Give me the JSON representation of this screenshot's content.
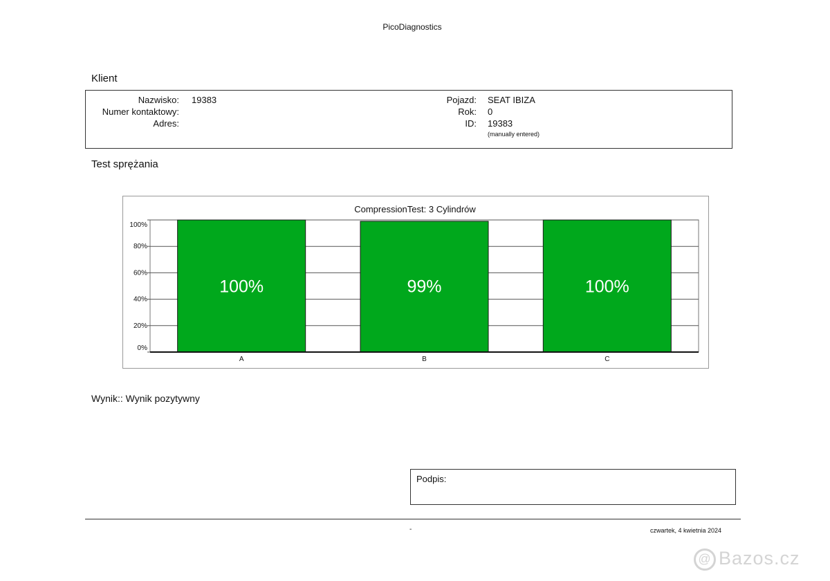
{
  "app_title": "PicoDiagnostics",
  "client": {
    "section_title": "Klient",
    "left_fields": [
      {
        "label": "Nazwisko:",
        "value": "19383"
      },
      {
        "label": "Numer kontaktowy:",
        "value": ""
      },
      {
        "label": "Adres:",
        "value": ""
      }
    ],
    "right_fields": [
      {
        "label": "Pojazd:",
        "value": "SEAT IBIZA"
      },
      {
        "label": "Rok:",
        "value": "0"
      },
      {
        "label": "ID:",
        "value": "19383"
      }
    ],
    "id_note": "(manually entered)"
  },
  "test": {
    "section_title": "Test sprężania"
  },
  "chart_data": {
    "type": "bar",
    "title": "CompressionTest: 3 Cylindrów",
    "categories": [
      "A",
      "B",
      "C"
    ],
    "values": [
      100,
      99,
      100
    ],
    "value_labels": [
      "100%",
      "99%",
      "100%"
    ],
    "y_ticks": [
      "0%",
      "20%",
      "40%",
      "60%",
      "80%",
      "100%"
    ],
    "ylim": [
      0,
      100
    ],
    "grid": true,
    "bar_color": "#00a81c",
    "label_color": "#ffffff"
  },
  "result": {
    "text": "Wynik:: Wynik pozytywny"
  },
  "signature": {
    "label": "Podpis:"
  },
  "footer": {
    "dash": "-",
    "date": "czwartek, 4 kwietnia 2024"
  },
  "watermark": {
    "text": "Bazos.cz"
  }
}
